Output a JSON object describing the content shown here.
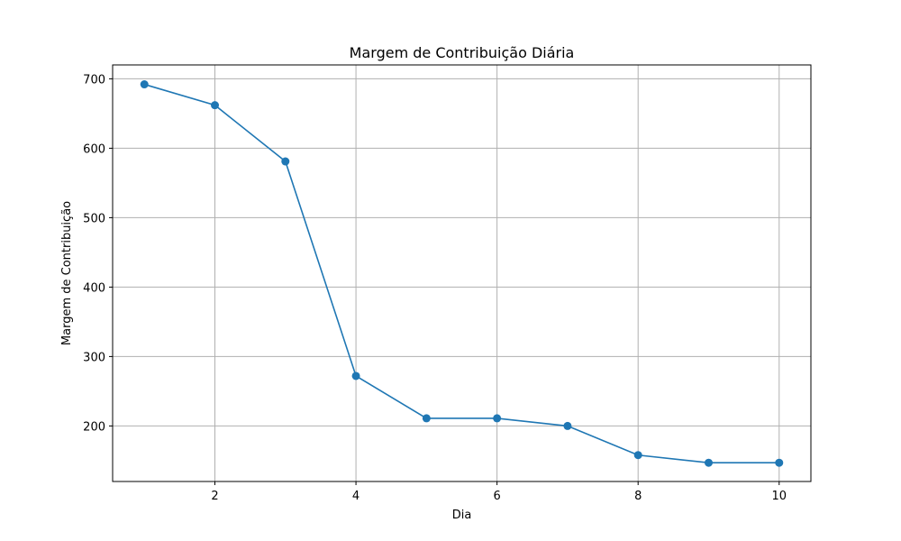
{
  "chart_data": {
    "type": "line",
    "title": "Margem de Contribuição Diária",
    "xlabel": "Dia",
    "ylabel": "Margem de Contribuição",
    "xlim": [
      0.55,
      10.45
    ],
    "ylim": [
      120,
      720
    ],
    "x_ticks": [
      2,
      4,
      6,
      8,
      10
    ],
    "y_ticks": [
      200,
      300,
      400,
      500,
      600,
      700
    ],
    "grid": true,
    "series": [
      {
        "color": "#1f77b4",
        "marker": "circle",
        "x": [
          1,
          2,
          3,
          4,
          5,
          6,
          7,
          8,
          9,
          10
        ],
        "y": [
          692,
          662,
          581,
          272,
          211,
          211,
          200,
          158,
          147,
          147
        ]
      }
    ]
  }
}
